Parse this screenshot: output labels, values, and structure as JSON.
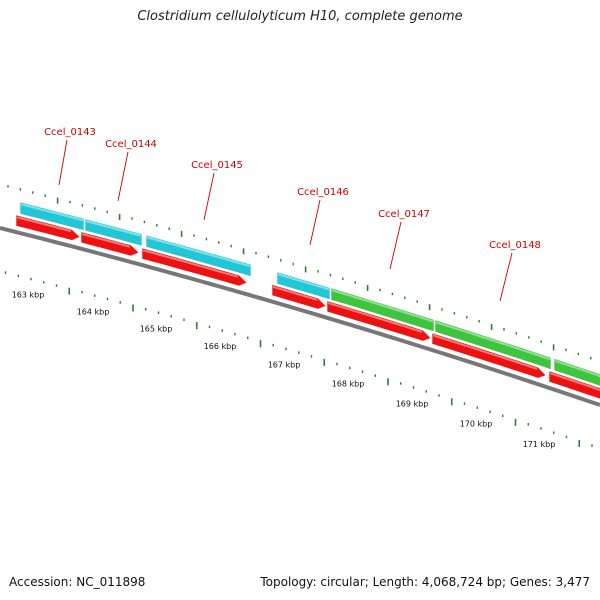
{
  "title": "Clostridium cellulolyticum H10, complete genome",
  "footer": {
    "accession": "Accession: NC_011898",
    "summary": "Topology: circular; Length: 4,068,724 bp; Genes: 3,477"
  },
  "colors": {
    "backbone": "#777777",
    "cyan_feature": "#22c6d6",
    "green_feature": "#3ec43e",
    "red_feature": "#ee1111",
    "tick": "#2e7d32",
    "label": "#cc0000"
  },
  "chart_data": {
    "type": "genome-map",
    "axis_unit": "kbp",
    "kbp_labels": [
      "163 kbp",
      "164 kbp",
      "165 kbp",
      "166 kbp",
      "167 kbp",
      "168 kbp",
      "169 kbp",
      "170 kbp",
      "171 kbp"
    ],
    "genes": [
      {
        "name": "Ccel_0143"
      },
      {
        "name": "Ccel_0144"
      },
      {
        "name": "Ccel_0145"
      },
      {
        "name": "Ccel_0146"
      },
      {
        "name": "Ccel_0147"
      },
      {
        "name": "Ccel_0148"
      }
    ]
  }
}
